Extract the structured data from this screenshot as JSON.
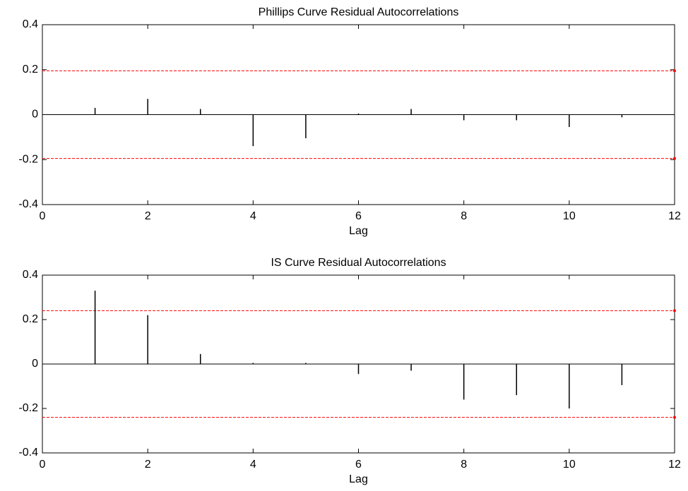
{
  "chart_data": [
    {
      "type": "stem",
      "title": "Phillips Curve Residual Autocorrelations",
      "x_label": "Lag",
      "x": [
        1,
        2,
        3,
        4,
        5,
        6,
        7,
        8,
        9,
        10,
        11
      ],
      "values": [
        0.03,
        0.07,
        0.025,
        -0.14,
        -0.105,
        0.005,
        0.025,
        -0.025,
        -0.025,
        -0.055,
        -0.012
      ],
      "color": "#000000",
      "bounds": {
        "values": [
          0.195,
          -0.195
        ],
        "color": "#ff0000"
      },
      "xlim": [
        0,
        12
      ],
      "ylim": [
        -0.4,
        0.4
      ],
      "xticks": [
        0,
        2,
        4,
        6,
        8,
        10,
        12
      ],
      "yticks": [
        -0.4,
        -0.2,
        0,
        0.2,
        0.4
      ]
    },
    {
      "type": "stem",
      "title": "IS Curve Residual Autocorrelations",
      "x_label": "Lag",
      "x": [
        1,
        2,
        3,
        4,
        5,
        6,
        7,
        8,
        9,
        10,
        11
      ],
      "values": [
        0.33,
        0.22,
        0.045,
        0.005,
        0.005,
        -0.045,
        -0.03,
        -0.16,
        -0.14,
        -0.2,
        -0.095
      ],
      "color": "#000000",
      "bounds": {
        "values": [
          0.24,
          -0.24
        ],
        "color": "#ff0000"
      },
      "xlim": [
        0,
        12
      ],
      "ylim": [
        -0.4,
        0.4
      ],
      "xticks": [
        0,
        2,
        4,
        6,
        8,
        10,
        12
      ],
      "yticks": [
        -0.4,
        -0.2,
        0,
        0.2,
        0.4
      ]
    }
  ]
}
